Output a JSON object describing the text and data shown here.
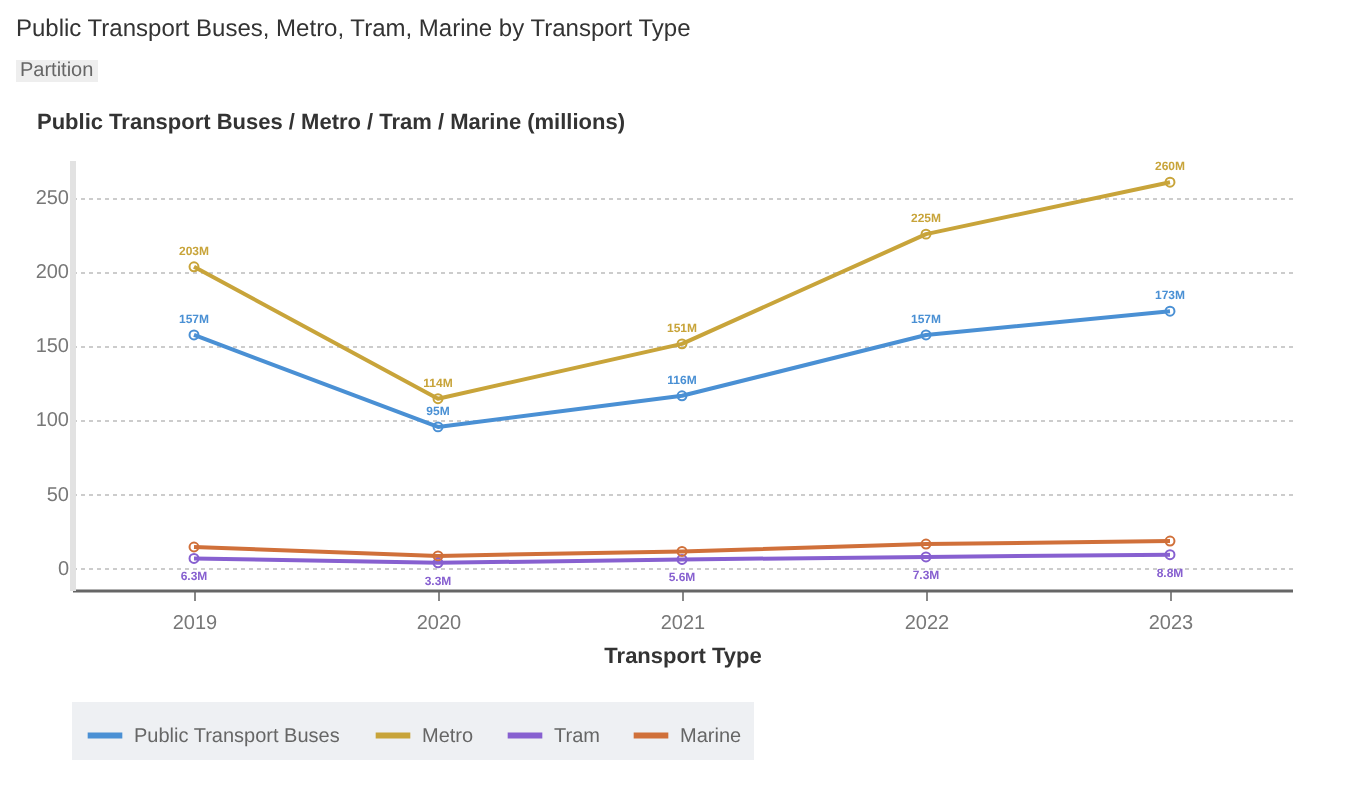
{
  "chart_data": {
    "type": "line",
    "title": "Public Transport Buses, Metro, Tram, Marine by Transport Type",
    "ylabel": "Public Transport Buses / Metro / Tram / Marine (millions)",
    "xlabel": "Transport Type",
    "annotations": [
      "Partition"
    ],
    "categories": [
      "2019",
      "2020",
      "2021",
      "2022",
      "2023"
    ],
    "series": [
      {
        "name": "Public Transport Buses",
        "color": "#4a90d4",
        "values": [
          157,
          95,
          116,
          157,
          173
        ],
        "value_labels": [
          "157M",
          "95M",
          "116M",
          "157M",
          "173M"
        ]
      },
      {
        "name": "Metro",
        "color": "#c8a43a",
        "values": [
          203,
          114,
          151,
          225,
          260
        ],
        "value_labels": [
          "203M",
          "114M",
          "151M",
          "225M",
          "260M"
        ]
      },
      {
        "name": "Tram",
        "color": "#8760d0",
        "values": [
          6.3,
          3.3,
          5.6,
          7.3,
          8.8
        ],
        "value_labels": [
          "6.3M",
          "3.3M",
          "5.6M",
          "7.3M",
          "8.8M"
        ]
      },
      {
        "name": "Marine",
        "color": "#d0703a",
        "values": [
          14,
          8,
          11,
          16,
          18
        ]
      }
    ],
    "ylim": [
      -15,
      275
    ],
    "yticks": [
      0,
      50,
      100,
      150,
      200,
      250
    ],
    "grid": "y",
    "legend": "bottom",
    "marker": "circle",
    "line_style": "solid"
  }
}
